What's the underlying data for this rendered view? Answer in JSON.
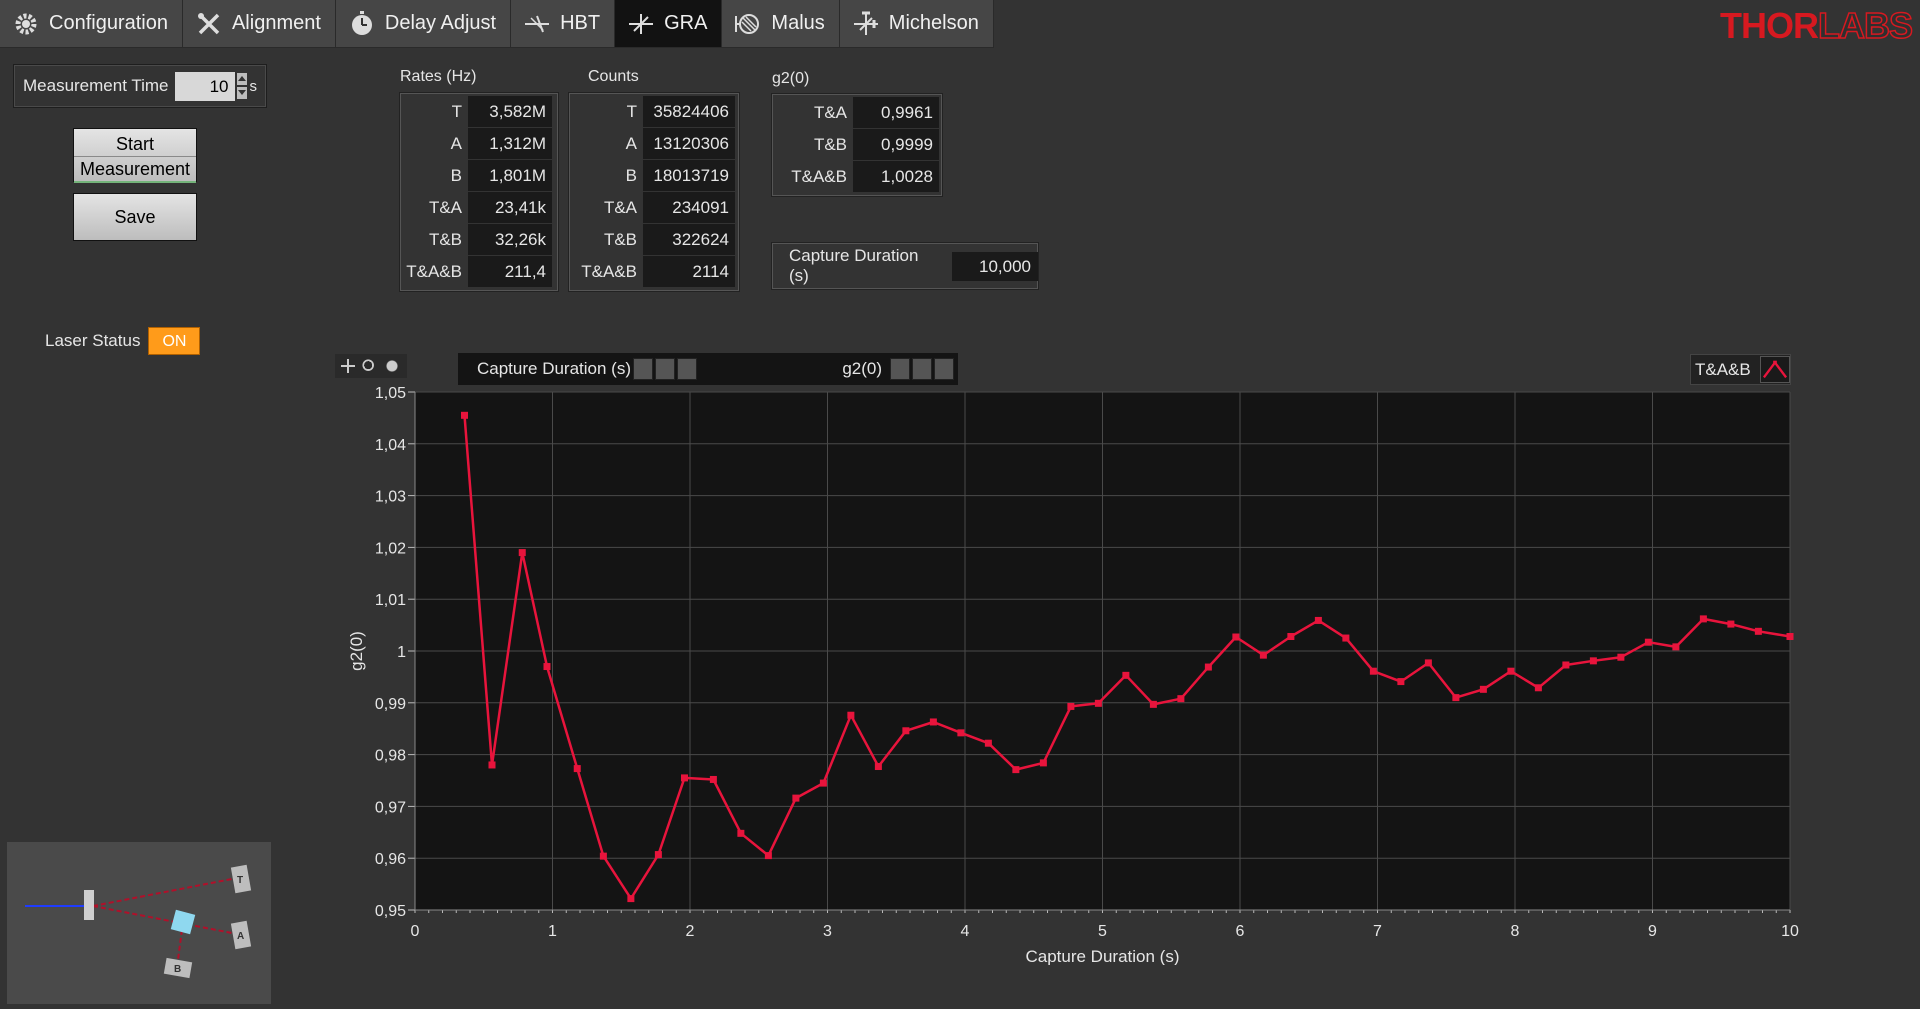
{
  "tabs": [
    {
      "label": "Configuration",
      "icon": "gear-icon",
      "active": false
    },
    {
      "label": "Alignment",
      "icon": "tools-icon",
      "active": false
    },
    {
      "label": "Delay Adjust",
      "icon": "stopwatch-icon",
      "active": false
    },
    {
      "label": "HBT",
      "icon": "beam-splitter-icon",
      "active": false
    },
    {
      "label": "GRA",
      "icon": "beam-splitter-icon",
      "active": true
    },
    {
      "label": "Malus",
      "icon": "polarizer-icon",
      "active": false
    },
    {
      "label": "Michelson",
      "icon": "interferometer-icon",
      "active": false
    }
  ],
  "logo": {
    "part1": "THOR",
    "part2": "LABS"
  },
  "measurement": {
    "label": "Measurement Time",
    "value": "10",
    "unit": "s"
  },
  "buttons": {
    "start_line1": "Start",
    "start_line2": "Measurement",
    "save": "Save"
  },
  "laser": {
    "label": "Laser Status",
    "state": "ON"
  },
  "rates": {
    "title": "Rates (Hz)",
    "rows": [
      {
        "label": "T",
        "value": "3,582M"
      },
      {
        "label": "A",
        "value": "1,312M"
      },
      {
        "label": "B",
        "value": "1,801M"
      },
      {
        "label": "T&A",
        "value": "23,41k"
      },
      {
        "label": "T&B",
        "value": "32,26k"
      },
      {
        "label": "T&A&B",
        "value": "211,4"
      }
    ]
  },
  "counts": {
    "title": "Counts",
    "rows": [
      {
        "label": "T",
        "value": "35824406"
      },
      {
        "label": "A",
        "value": "13120306"
      },
      {
        "label": "B",
        "value": "18013719"
      },
      {
        "label": "T&A",
        "value": "234091"
      },
      {
        "label": "T&B",
        "value": "322624"
      },
      {
        "label": "T&A&B",
        "value": "2114"
      }
    ]
  },
  "g2": {
    "title": "g2(0)",
    "rows": [
      {
        "label": "T&A",
        "value": "0,9961"
      },
      {
        "label": "T&B",
        "value": "0,9999"
      },
      {
        "label": "T&A&B",
        "value": "1,0028"
      }
    ]
  },
  "capture": {
    "label": "Capture Duration (s)",
    "value": "10,000"
  },
  "plot_header": {
    "x_axis_name": "Capture Duration (s)",
    "y_axis_name": "g2(0)",
    "legend": "T&A&B"
  },
  "schematic": {
    "labels": [
      "T",
      "A",
      "B"
    ]
  },
  "colors": {
    "series": "#e8143c",
    "active_tab": "#121212",
    "laser_on": "#ff9b1a"
  },
  "chart_data": {
    "type": "line",
    "title": "",
    "xlabel": "Capture Duration (s)",
    "ylabel": "g2(0)",
    "xlim": [
      0,
      10
    ],
    "ylim": [
      0.95,
      1.05
    ],
    "x_ticks": [
      0,
      1,
      2,
      3,
      4,
      5,
      6,
      7,
      8,
      9,
      10
    ],
    "x_tick_labels": [
      "0",
      "1",
      "2",
      "3",
      "4",
      "5",
      "6",
      "7",
      "8",
      "9",
      "10"
    ],
    "y_ticks": [
      0.95,
      0.96,
      0.97,
      0.98,
      0.99,
      1.0,
      1.01,
      1.02,
      1.03,
      1.04,
      1.05
    ],
    "y_tick_labels": [
      "0,95",
      "0,96",
      "0,97",
      "0,98",
      "0,99",
      "1",
      "1,01",
      "1,02",
      "1,03",
      "1,04",
      "1,05"
    ],
    "grid": true,
    "legend_position": "top-right",
    "series": [
      {
        "name": "T&A&B",
        "x": [
          0.36,
          0.56,
          0.78,
          0.96,
          1.18,
          1.37,
          1.57,
          1.77,
          1.96,
          2.17,
          2.37,
          2.57,
          2.77,
          2.97,
          3.17,
          3.37,
          3.57,
          3.77,
          3.97,
          4.17,
          4.37,
          4.57,
          4.77,
          4.97,
          5.17,
          5.37,
          5.57,
          5.77,
          5.97,
          6.17,
          6.37,
          6.57,
          6.77,
          6.97,
          7.17,
          7.37,
          7.57,
          7.77,
          7.97,
          8.17,
          8.37,
          8.57,
          8.77,
          8.97,
          9.17,
          9.37,
          9.57,
          9.77,
          10.0
        ],
        "y": [
          1.0455,
          0.978,
          1.019,
          0.997,
          0.9773,
          0.9604,
          0.9522,
          0.9607,
          0.9755,
          0.9752,
          0.9648,
          0.9605,
          0.9716,
          0.9745,
          0.9876,
          0.9777,
          0.9846,
          0.9863,
          0.9842,
          0.9822,
          0.9771,
          0.9784,
          0.9893,
          0.9899,
          0.9953,
          0.9897,
          0.9908,
          0.9969,
          1.0027,
          0.9992,
          1.0028,
          1.0059,
          1.0025,
          0.9961,
          0.9941,
          0.9977,
          0.991,
          0.9926,
          0.9961,
          0.9929,
          0.9973,
          0.9981,
          0.9988,
          1.0017,
          1.0008,
          1.0062,
          1.0052,
          1.0038,
          1.0028
        ]
      }
    ]
  }
}
